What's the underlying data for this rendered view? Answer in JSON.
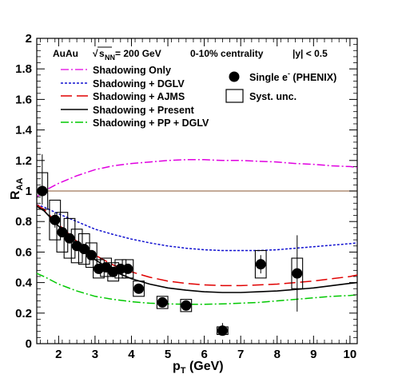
{
  "chart_data": {
    "type": "scatter",
    "header": {
      "system": "AuAu",
      "energy_sqrt": "√",
      "energy_s": "s",
      "energy_sub": "NN",
      "energy_rest": " = 200 GeV",
      "centrality": "0-10% centrality",
      "rapidity": "|y| < 0.5"
    },
    "xlabel": {
      "main": "p",
      "sub": "T",
      "unit": " (GeV)"
    },
    "ylabel": {
      "main": "R",
      "sub": "AA"
    },
    "xlim": [
      1.4,
      10.2
    ],
    "ylim": [
      0,
      2
    ],
    "xticks": [
      2,
      3,
      4,
      5,
      6,
      7,
      8,
      9,
      10
    ],
    "xtick_labels": [
      "2",
      "3",
      "4",
      "5",
      "6",
      "7",
      "8",
      "9",
      "10"
    ],
    "yticks": [
      0,
      0.2,
      0.4,
      0.6,
      0.8,
      1,
      1.2,
      1.4,
      1.6,
      1.8,
      2
    ],
    "ytick_labels": [
      "0",
      "0.2",
      "0.4",
      "0.6",
      "0.8",
      "1",
      "1.2",
      "1.4",
      "1.6",
      "1.8",
      "2"
    ],
    "reference_line": {
      "y": 1,
      "color": "#a0785a"
    },
    "curves": [
      {
        "name": "Shadowing Only",
        "color": "#e000e0",
        "dash": "10,3,2,3",
        "x": [
          1.4,
          1.6,
          2,
          2.5,
          3,
          3.5,
          4,
          4.5,
          5,
          5.5,
          6,
          6.5,
          7,
          7.5,
          8,
          8.5,
          9,
          9.5,
          10,
          10.2
        ],
        "y": [
          0.96,
          1.0,
          1.05,
          1.1,
          1.14,
          1.165,
          1.18,
          1.19,
          1.2,
          1.205,
          1.205,
          1.2,
          1.2,
          1.195,
          1.19,
          1.18,
          1.175,
          1.165,
          1.16,
          1.155
        ]
      },
      {
        "name": "Shadowing + DGLV",
        "color": "#1010d0",
        "dash": "3,2",
        "x": [
          1.4,
          1.6,
          2,
          2.5,
          3,
          3.5,
          4,
          4.5,
          5,
          5.5,
          6,
          6.5,
          7,
          7.5,
          8,
          8.5,
          9,
          9.5,
          10,
          10.2
        ],
        "y": [
          0.91,
          0.895,
          0.85,
          0.8,
          0.75,
          0.715,
          0.685,
          0.66,
          0.64,
          0.625,
          0.615,
          0.61,
          0.61,
          0.61,
          0.615,
          0.625,
          0.635,
          0.645,
          0.655,
          0.66
        ]
      },
      {
        "name": "Shadowing + AJMS",
        "color": "#e00000",
        "dash": "14,6",
        "x": [
          1.4,
          1.6,
          2,
          2.5,
          3,
          3.5,
          4,
          4.5,
          5,
          5.5,
          6,
          6.5,
          7,
          7.5,
          8,
          8.5,
          9,
          9.5,
          10,
          10.2
        ],
        "y": [
          0.91,
          0.88,
          0.78,
          0.67,
          0.58,
          0.515,
          0.47,
          0.435,
          0.41,
          0.395,
          0.385,
          0.38,
          0.38,
          0.385,
          0.39,
          0.4,
          0.41,
          0.425,
          0.44,
          0.45
        ]
      },
      {
        "name": "Shadowing + Present",
        "color": "#000000",
        "dash": "",
        "x": [
          1.4,
          1.6,
          2,
          2.5,
          3,
          3.5,
          4,
          4.5,
          5,
          5.5,
          6,
          6.5,
          7,
          7.5,
          8,
          8.5,
          9,
          9.5,
          10,
          10.2
        ],
        "y": [
          0.9,
          0.87,
          0.77,
          0.65,
          0.55,
          0.475,
          0.425,
          0.39,
          0.365,
          0.35,
          0.34,
          0.335,
          0.335,
          0.34,
          0.345,
          0.355,
          0.365,
          0.38,
          0.395,
          0.4
        ]
      },
      {
        "name": "Shadowing + PP + DGLV",
        "color": "#00c800",
        "dash": "10,3,2,3",
        "x": [
          1.4,
          1.6,
          2,
          2.5,
          3,
          3.5,
          4,
          4.5,
          5,
          5.5,
          6,
          6.5,
          7,
          7.5,
          8,
          8.5,
          9,
          9.5,
          10,
          10.2
        ],
        "y": [
          0.46,
          0.44,
          0.39,
          0.345,
          0.31,
          0.29,
          0.275,
          0.265,
          0.26,
          0.258,
          0.258,
          0.26,
          0.265,
          0.27,
          0.28,
          0.29,
          0.3,
          0.31,
          0.315,
          0.32
        ]
      }
    ],
    "data_series": {
      "name": "Single e",
      "name_sup": "-",
      "name_suffix": " (PHENIX)",
      "syst_label": "Syst. unc.",
      "points": [
        {
          "x": 1.55,
          "y": 1.0,
          "stat_lo": 0.09,
          "stat_hi": 0.24,
          "syst_w": 0.3,
          "syst_h": 0.12
        },
        {
          "x": 1.9,
          "y": 0.81,
          "stat_lo": 0.05,
          "stat_hi": 0.05,
          "syst_w": 0.3,
          "syst_h": 0.13
        },
        {
          "x": 2.1,
          "y": 0.73,
          "stat_lo": 0.03,
          "stat_hi": 0.03,
          "syst_w": 0.3,
          "syst_h": 0.13
        },
        {
          "x": 2.3,
          "y": 0.69,
          "stat_lo": 0.03,
          "stat_hi": 0.03,
          "syst_w": 0.3,
          "syst_h": 0.13
        },
        {
          "x": 2.5,
          "y": 0.64,
          "stat_lo": 0.03,
          "stat_hi": 0.03,
          "syst_w": 0.3,
          "syst_h": 0.11
        },
        {
          "x": 2.7,
          "y": 0.62,
          "stat_lo": 0.03,
          "stat_hi": 0.03,
          "syst_w": 0.3,
          "syst_h": 0.1
        },
        {
          "x": 2.9,
          "y": 0.58,
          "stat_lo": 0.03,
          "stat_hi": 0.03,
          "syst_w": 0.3,
          "syst_h": 0.08
        },
        {
          "x": 3.1,
          "y": 0.49,
          "stat_lo": 0.03,
          "stat_hi": 0.03,
          "syst_w": 0.3,
          "syst_h": 0.06
        },
        {
          "x": 3.3,
          "y": 0.5,
          "stat_lo": 0.03,
          "stat_hi": 0.03,
          "syst_w": 0.3,
          "syst_h": 0.06
        },
        {
          "x": 3.5,
          "y": 0.47,
          "stat_lo": 0.03,
          "stat_hi": 0.03,
          "syst_w": 0.3,
          "syst_h": 0.06
        },
        {
          "x": 3.7,
          "y": 0.49,
          "stat_lo": 0.03,
          "stat_hi": 0.03,
          "syst_w": 0.3,
          "syst_h": 0.06
        },
        {
          "x": 3.9,
          "y": 0.49,
          "stat_lo": 0.03,
          "stat_hi": 0.03,
          "syst_w": 0.3,
          "syst_h": 0.06
        },
        {
          "x": 4.2,
          "y": 0.36,
          "stat_lo": 0.03,
          "stat_hi": 0.03,
          "syst_w": 0.3,
          "syst_h": 0.05
        },
        {
          "x": 4.85,
          "y": 0.27,
          "stat_lo": 0.03,
          "stat_hi": 0.03,
          "syst_w": 0.3,
          "syst_h": 0.04
        },
        {
          "x": 5.5,
          "y": 0.25,
          "stat_lo": 0.03,
          "stat_hi": 0.03,
          "syst_w": 0.3,
          "syst_h": 0.04
        },
        {
          "x": 6.5,
          "y": 0.085,
          "stat_lo": 0.03,
          "stat_hi": 0.05,
          "syst_w": 0.3,
          "syst_h": 0.025
        },
        {
          "x": 7.55,
          "y": 0.52,
          "stat_lo": 0.06,
          "stat_hi": 0.06,
          "syst_w": 0.3,
          "syst_h": 0.09
        },
        {
          "x": 8.55,
          "y": 0.46,
          "stat_lo": 0.25,
          "stat_hi": 0.25,
          "syst_w": 0.3,
          "syst_h": 0.1
        }
      ]
    }
  }
}
